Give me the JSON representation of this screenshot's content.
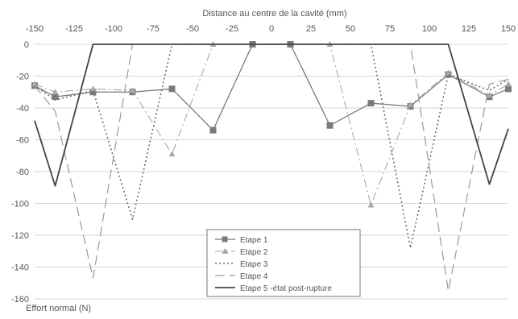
{
  "chart_data": {
    "type": "line",
    "title": "",
    "xlabel": "Distance au centre de la cavité (mm)",
    "ylabel": "Effort normal (N)",
    "x_ticks": [
      "-150",
      "-125",
      "-100",
      "-75",
      "-50",
      "-25",
      "0",
      "25",
      "50",
      "75",
      "100",
      "125",
      "150"
    ],
    "y_ticks": [
      "0",
      "-20",
      "-40",
      "-60",
      "-80",
      "-100",
      "-120",
      "-140",
      "-160"
    ],
    "xlim": [
      -150,
      150
    ],
    "ylim": [
      -160,
      0
    ],
    "x_axis_position": "top",
    "grid": "horizontal",
    "legend_position": "bottom-center",
    "series": [
      {
        "name": "Etape 1",
        "style": "solid-square",
        "color": "#7a7a7a",
        "points": [
          [
            -150,
            -26
          ],
          [
            -137,
            -33
          ],
          [
            -113,
            -30
          ],
          [
            -88,
            -30
          ],
          [
            -63,
            -28
          ],
          [
            -37,
            -54
          ],
          [
            -12,
            0
          ],
          [
            12,
            0
          ],
          [
            37,
            -51
          ],
          [
            63,
            -37
          ],
          [
            88,
            -39
          ],
          [
            112,
            -19
          ],
          [
            138,
            -33
          ],
          [
            150,
            -28
          ]
        ]
      },
      {
        "name": "Etape 2",
        "style": "dashdot-triangle",
        "color": "#a8a8a8",
        "points": [
          [
            -150,
            -25
          ],
          [
            -137,
            -30
          ],
          [
            -113,
            -28
          ],
          [
            -88,
            -29
          ],
          [
            -63,
            -69
          ],
          [
            -37,
            0
          ],
          [
            37,
            0
          ],
          [
            63,
            -101
          ],
          [
            88,
            -38
          ],
          [
            112,
            -18
          ],
          [
            138,
            -32
          ],
          [
            150,
            -25
          ]
        ]
      },
      {
        "name": "Etape 3",
        "style": "dotted",
        "color": "#6e6e6e",
        "points": [
          [
            -150,
            -26
          ],
          [
            -137,
            -35
          ],
          [
            -113,
            -29
          ],
          [
            -88,
            -110
          ],
          [
            -63,
            0
          ],
          [
            63,
            0
          ],
          [
            88,
            -128
          ],
          [
            112,
            -19
          ],
          [
            138,
            -29
          ],
          [
            150,
            -22
          ]
        ]
      },
      {
        "name": "Etape 4",
        "style": "long-dash",
        "color": "#9a9a9a",
        "points": [
          [
            -150,
            -26
          ],
          [
            -137,
            -42
          ],
          [
            -113,
            -147
          ],
          [
            -88,
            0
          ],
          [
            88,
            0
          ],
          [
            112,
            -155
          ],
          [
            138,
            -25
          ],
          [
            150,
            -22
          ]
        ]
      },
      {
        "name": "Etape 5 -état post-rupture",
        "style": "solid-thick",
        "color": "#444444",
        "points": [
          [
            -150,
            -48
          ],
          [
            -137,
            -89
          ],
          [
            -113,
            0
          ],
          [
            112,
            0
          ],
          [
            138,
            -88
          ],
          [
            150,
            -53
          ]
        ]
      }
    ]
  }
}
